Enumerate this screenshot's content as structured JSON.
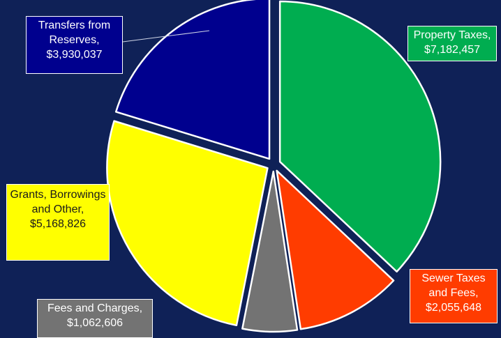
{
  "chart_data": {
    "type": "pie",
    "title": "",
    "slices": [
      {
        "label": "Property Taxes,",
        "value_label": "$7,182,457",
        "value": 7182457,
        "color": "#00ad50"
      },
      {
        "label": "Sewer Taxes and Fees,",
        "value_label": "$2,055,648",
        "value": 2055648,
        "color": "#ff3c00"
      },
      {
        "label": "Fees and Charges,",
        "value_label": "$1,062,606",
        "value": 1062606,
        "color": "#737373"
      },
      {
        "label": "Grants, Borrowings and Other,",
        "value_label": "$5,168,826",
        "value": 5168826,
        "color": "#ffff00"
      },
      {
        "label": "Transfers from Reserves,",
        "value_label": "$3,930,037",
        "value": 3930037,
        "color": "#00008e"
      }
    ],
    "start_angle_deg": 0,
    "direction": "clockwise",
    "exploded": true,
    "legend": "none"
  },
  "colors": {
    "background": "#0f2157",
    "slice_border": "#ffffff"
  }
}
